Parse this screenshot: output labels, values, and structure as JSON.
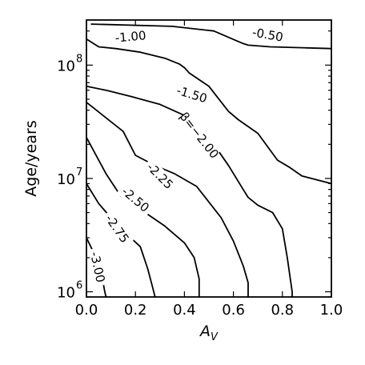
{
  "chart_data": {
    "type": "contour",
    "xlabel": "A_V",
    "ylabel": "Age/years",
    "xlim": [
      0.0,
      1.0
    ],
    "ylim": [
      900000,
      250000000
    ],
    "yscale": "log",
    "grid": false,
    "x_ticks": [
      0.0,
      0.2,
      0.4,
      0.6,
      0.8,
      1.0
    ],
    "x_tick_labels": [
      "0.0",
      "0.2",
      "0.4",
      "0.6",
      "0.8",
      "1.0"
    ],
    "y_ticks": [
      1000000,
      10000000,
      100000000
    ],
    "y_tick_labels": [
      "10",
      "10",
      "10"
    ],
    "y_tick_exponents": [
      "6",
      "7",
      "8"
    ],
    "contours": [
      {
        "level": -0.5,
        "label": "-0.50",
        "points": [
          [
            0.02,
            230000000.0
          ],
          [
            0.35,
            220000000.0
          ],
          [
            0.52,
            200000000.0
          ],
          [
            0.61,
            165000000.0
          ],
          [
            0.64,
            155000000.0
          ],
          [
            0.66,
            150000000.0
          ],
          [
            0.75,
            145000000.0
          ],
          [
            0.9,
            142000000.0
          ],
          [
            1.0,
            140000000.0
          ]
        ],
        "label_at": [
          0.74,
          185000000.0
        ],
        "rotation": 10
      },
      {
        "level": -1.0,
        "label": "-1.00",
        "points": [
          [
            0.0,
            170000000.0
          ],
          [
            0.05,
            145000000.0
          ],
          [
            0.12,
            140000000.0
          ],
          [
            0.22,
            130000000.0
          ],
          [
            0.32,
            115000000.0
          ],
          [
            0.38,
            102000000.0
          ],
          [
            0.4,
            95000000.0
          ],
          [
            0.42,
            85000000.0
          ],
          [
            0.5,
            65000000.0
          ],
          [
            0.58,
            39000000.0
          ],
          [
            0.62,
            33000000.0
          ],
          [
            0.7,
            25000000.0
          ],
          [
            0.78,
            14500000.0
          ],
          [
            0.83,
            12500000.0
          ],
          [
            0.88,
            10500000.0
          ],
          [
            1.0,
            9000000.0
          ]
        ],
        "label_at": [
          0.18,
          178000000.0
        ],
        "rotation": -5
      },
      {
        "level": -1.5,
        "label": "-1.50",
        "points": [
          [
            0.0,
            65000000.0
          ],
          [
            0.08,
            60000000.0
          ],
          [
            0.18,
            53000000.0
          ],
          [
            0.3,
            45000000.0
          ],
          [
            0.4,
            36000000.0
          ],
          [
            0.52,
            20000000.0
          ],
          [
            0.58,
            13000000.0
          ],
          [
            0.64,
            8000000.0
          ],
          [
            0.66,
            6800000.0
          ],
          [
            0.7,
            5800000.0
          ],
          [
            0.76,
            5000000.0
          ],
          [
            0.8,
            3600000.0
          ],
          [
            0.82,
            2000000.0
          ],
          [
            0.84,
            1000000.0
          ],
          [
            0.84,
            900000.0
          ]
        ],
        "label_at": [
          0.43,
          55000000.0
        ],
        "rotation": 17
      },
      {
        "level": -2.0,
        "label": "β=−2.00",
        "points": [
          [
            0.0,
            47000000.0
          ],
          [
            0.15,
            26000000.0
          ],
          [
            0.2,
            16000000.0
          ],
          [
            0.28,
            13000000.0
          ],
          [
            0.36,
            11000000.0
          ],
          [
            0.45,
            8500000.0
          ],
          [
            0.55,
            4500000.0
          ],
          [
            0.6,
            2800000.0
          ],
          [
            0.64,
            1700000.0
          ],
          [
            0.66,
            1200000.0
          ],
          [
            0.66,
            900000.0
          ]
        ],
        "label_at": [
          0.46,
          24000000.0
        ],
        "rotation": 52
      },
      {
        "level": -2.25,
        "label": "-2.25",
        "points": [
          [
            0.0,
            23000000.0
          ],
          [
            0.08,
            11000000.0
          ],
          [
            0.14,
            7000000.0
          ],
          [
            0.24,
            5000000.0
          ],
          [
            0.32,
            3800000.0
          ],
          [
            0.4,
            2700000.0
          ],
          [
            0.44,
            2000000.0
          ],
          [
            0.46,
            1300000.0
          ],
          [
            0.46,
            900000.0
          ]
        ],
        "label_at": [
          0.3,
          10500000.0
        ],
        "rotation": 45
      },
      {
        "level": -2.5,
        "label": "-2.50",
        "points": [
          [
            0.0,
            9000000.0
          ],
          [
            0.05,
            6000000.0
          ],
          [
            0.1,
            4500000.0
          ],
          [
            0.16,
            3300000.0
          ],
          [
            0.22,
            2500000.0
          ],
          [
            0.25,
            1600000.0
          ],
          [
            0.27,
            1100000.0
          ],
          [
            0.28,
            900000.0
          ]
        ],
        "label_at": [
          0.2,
          6500000.0
        ],
        "rotation": 40
      },
      {
        "level": -2.75,
        "label": "-2.75",
        "points": [
          [
            0.0,
            3000000.0
          ],
          [
            0.03,
            2200000.0
          ],
          [
            0.06,
            1500000.0
          ],
          [
            0.075,
            1000000.0
          ],
          [
            0.08,
            900000.0
          ]
        ],
        "label_at": [
          0.125,
          3600000.0
        ],
        "rotation": 55
      },
      {
        "level": -3.0,
        "label": "-3.00",
        "points": [],
        "label_at": [
          0.045,
          1650000.0
        ],
        "rotation": 78
      }
    ]
  }
}
